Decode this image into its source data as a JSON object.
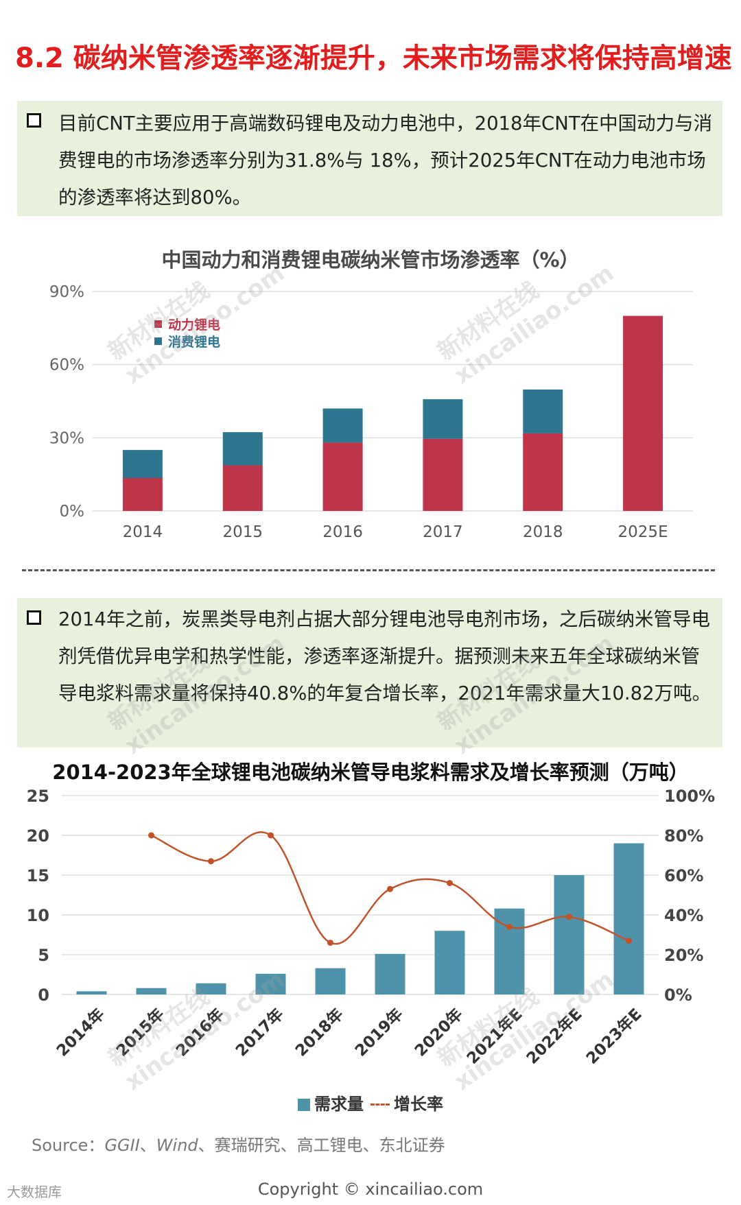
{
  "title": "8.2 碳纳米管渗透率逐渐提升，未来市场需求将保持高增速",
  "note1": "目前CNT主要应用于高端数码锂电及动力电池中，2018年CNT在中国动力与消费锂电的市场渗透率分别为31.8%与 18%，预计2025年CNT在动力电池市场的渗透率将达到80%。",
  "note2": "2014年之前，炭黑类导电剂占据大部分锂电池导电剂市场，之后碳纳米管导电剂凭借优异电学和热学性能，渗透率逐渐提升。据预测未来五年全球碳纳米管导电浆料需求量将保持40.8%的年复合增长率，2021年需求量大10.82万吨。",
  "watermark": {
    "line1": "新材料在线",
    "line2": "xincailiao.com"
  },
  "source": {
    "label": "Source：",
    "items": [
      "GGII",
      "Wind",
      "、赛瑞研究、高工锂电、东北证券"
    ]
  },
  "copyright": "Copyright © xincailiao.com",
  "corner_logo": "大数据库",
  "colors": {
    "red_bar": "#be3448",
    "teal_bar": "#2e7590",
    "blue_bar": "#4e93aa",
    "line": "#c0532a",
    "title_red": "#e11d1d"
  },
  "chart_data": [
    {
      "type": "bar",
      "stacked": true,
      "title": "中国动力和消费锂电碳纳米管市场渗透率（%）",
      "categories": [
        "2014",
        "2015",
        "2016",
        "2017",
        "2018",
        "2025E"
      ],
      "series": [
        {
          "name": "动力锂电",
          "values": [
            13.5,
            18.7,
            28.0,
            29.6,
            31.8,
            80.0
          ]
        },
        {
          "name": "消费锂电",
          "values": [
            11.5,
            13.6,
            14.0,
            16.2,
            18.0,
            0
          ]
        }
      ],
      "yticks": [
        "0%",
        "30%",
        "60%",
        "90%"
      ],
      "ylim": [
        0,
        90
      ],
      "legend_position": "top-left"
    },
    {
      "type": "bar+line",
      "title": "2014-2023年全球锂电池碳纳米管导电浆料需求及增长率预测（万吨）",
      "categories": [
        "2014年",
        "2015年",
        "2016年",
        "2017年",
        "2018年",
        "2019年",
        "2020年",
        "2021年E",
        "2022年E",
        "2023年E"
      ],
      "series": [
        {
          "name": "需求量",
          "axis": "left",
          "values": [
            0.4,
            0.8,
            1.4,
            2.6,
            3.3,
            5.1,
            8.0,
            10.8,
            15.0,
            19.0
          ]
        },
        {
          "name": "增长率",
          "axis": "right",
          "values": [
            null,
            80,
            67,
            80,
            26,
            53,
            56,
            34,
            39,
            27
          ]
        }
      ],
      "yticks_left": [
        "0",
        "5",
        "10",
        "15",
        "20",
        "25"
      ],
      "yticks_right": [
        "0%",
        "20%",
        "40%",
        "60%",
        "80%",
        "100%"
      ],
      "ylim_left": [
        0,
        25
      ],
      "ylim_right": [
        0,
        100
      ],
      "legend_position": "bottom"
    }
  ]
}
